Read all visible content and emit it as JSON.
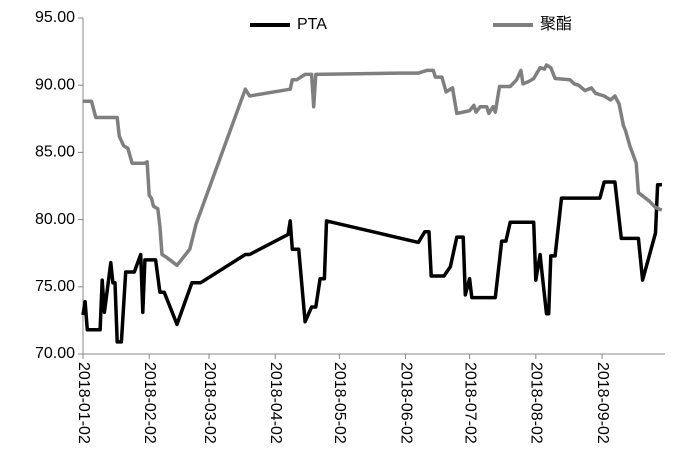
{
  "chart_data": {
    "type": "line",
    "xlim": [
      "2018-01-02",
      "2018-10-01"
    ],
    "xticks": [
      "2018-01-02",
      "2018-02-02",
      "2018-03-02",
      "2018-04-02",
      "2018-05-02",
      "2018-06-02",
      "2018-07-02",
      "2018-08-02",
      "2018-09-02"
    ],
    "ylim": [
      70,
      95
    ],
    "yticks": [
      {
        "value": 70,
        "label": "70.00"
      },
      {
        "value": 75,
        "label": "75.00"
      },
      {
        "value": 80,
        "label": "80.00"
      },
      {
        "value": 85,
        "label": "85.00"
      },
      {
        "value": 90,
        "label": "90.00"
      },
      {
        "value": 95,
        "label": "95.00"
      }
    ],
    "legend": "top",
    "series": [
      {
        "name": "PTA",
        "color": "#000000",
        "x": [
          "2018-01-02",
          "2018-01-03",
          "2018-01-04",
          "2018-01-10",
          "2018-01-11",
          "2018-01-12",
          "2018-01-15",
          "2018-01-16",
          "2018-01-17",
          "2018-01-18",
          "2018-01-20",
          "2018-01-22",
          "2018-01-26",
          "2018-01-29",
          "2018-01-30",
          "2018-01-31",
          "2018-02-05",
          "2018-02-07",
          "2018-02-09",
          "2018-02-15",
          "2018-02-22",
          "2018-02-26",
          "2018-03-19",
          "2018-03-21",
          "2018-04-08",
          "2018-04-09",
          "2018-04-10",
          "2018-04-13",
          "2018-04-16",
          "2018-04-19",
          "2018-04-21",
          "2018-04-23",
          "2018-04-25",
          "2018-04-26",
          "2018-06-08",
          "2018-06-11",
          "2018-06-13",
          "2018-06-14",
          "2018-06-20",
          "2018-06-23",
          "2018-06-26",
          "2018-06-29",
          "2018-06-30",
          "2018-07-02",
          "2018-07-03",
          "2018-07-14",
          "2018-07-17",
          "2018-07-19",
          "2018-07-21",
          "2018-08-01",
          "2018-08-02",
          "2018-08-04",
          "2018-08-05",
          "2018-08-07",
          "2018-08-08",
          "2018-08-09",
          "2018-08-11",
          "2018-08-14",
          "2018-09-01",
          "2018-09-03",
          "2018-09-08",
          "2018-09-11",
          "2018-09-19",
          "2018-09-21",
          "2018-09-27",
          "2018-09-28",
          "2018-09-30"
        ],
        "values": [
          72.9,
          73.9,
          71.8,
          71.8,
          75.5,
          73.1,
          76.8,
          75.3,
          75.3,
          70.9,
          70.9,
          76.1,
          76.1,
          77.4,
          73.1,
          77.0,
          77.0,
          74.6,
          74.6,
          72.2,
          75.3,
          75.3,
          77.4,
          77.4,
          78.9,
          79.9,
          77.8,
          77.8,
          72.4,
          73.5,
          73.5,
          75.6,
          75.6,
          79.9,
          78.3,
          79.1,
          79.1,
          75.8,
          75.8,
          76.5,
          78.7,
          78.7,
          74.4,
          75.6,
          74.2,
          74.2,
          78.4,
          78.4,
          79.8,
          79.8,
          75.5,
          77.4,
          75.9,
          73.0,
          73.0,
          77.3,
          77.3,
          81.6,
          81.6,
          82.8,
          82.8,
          78.6,
          78.6,
          75.5,
          79.0,
          82.6,
          82.6
        ]
      },
      {
        "name": "聚酯",
        "color": "#7f7f7f",
        "x": [
          "2018-01-02",
          "2018-01-06",
          "2018-01-08",
          "2018-01-18",
          "2018-01-19",
          "2018-01-21",
          "2018-01-23",
          "2018-01-25",
          "2018-01-31",
          "2018-02-01",
          "2018-02-02",
          "2018-02-03",
          "2018-02-04",
          "2018-02-06",
          "2018-02-07",
          "2018-02-08",
          "2018-02-10",
          "2018-02-15",
          "2018-02-21",
          "2018-02-24",
          "2018-03-19",
          "2018-03-21",
          "2018-04-09",
          "2018-04-10",
          "2018-04-12",
          "2018-04-16",
          "2018-04-19",
          "2018-04-20",
          "2018-04-21",
          "2018-05-30",
          "2018-06-08",
          "2018-06-12",
          "2018-06-15",
          "2018-06-16",
          "2018-06-19",
          "2018-06-21",
          "2018-06-24",
          "2018-06-26",
          "2018-06-29",
          "2018-07-02",
          "2018-07-04",
          "2018-07-05",
          "2018-07-07",
          "2018-07-10",
          "2018-07-11",
          "2018-07-13",
          "2018-07-14",
          "2018-07-16",
          "2018-07-21",
          "2018-07-24",
          "2018-07-26",
          "2018-07-27",
          "2018-07-30",
          "2018-08-01",
          "2018-08-04",
          "2018-08-06",
          "2018-08-07",
          "2018-08-09",
          "2018-08-11",
          "2018-08-18",
          "2018-08-20",
          "2018-08-22",
          "2018-08-25",
          "2018-08-28",
          "2018-08-30",
          "2018-09-03",
          "2018-09-06",
          "2018-09-08",
          "2018-09-10",
          "2018-09-12",
          "2018-09-13",
          "2018-09-15",
          "2018-09-18",
          "2018-09-19",
          "2018-09-24",
          "2018-09-27",
          "2018-09-30"
        ],
        "values": [
          88.8,
          88.8,
          87.6,
          87.6,
          86.2,
          85.5,
          85.3,
          84.2,
          84.2,
          84.3,
          81.8,
          81.6,
          81.0,
          80.8,
          79.5,
          77.4,
          77.2,
          76.6,
          77.8,
          79.7,
          89.7,
          89.2,
          89.7,
          90.4,
          90.4,
          90.8,
          90.8,
          88.4,
          90.8,
          90.9,
          90.9,
          91.1,
          91.1,
          90.6,
          90.6,
          89.5,
          89.8,
          87.9,
          88.0,
          88.1,
          88.5,
          88.0,
          88.4,
          88.4,
          87.9,
          88.4,
          88.0,
          89.9,
          89.9,
          90.4,
          91.1,
          90.1,
          90.3,
          90.5,
          91.3,
          91.2,
          91.5,
          91.3,
          90.5,
          90.4,
          90.1,
          90.0,
          89.6,
          89.8,
          89.4,
          89.2,
          88.9,
          89.2,
          88.6,
          87.0,
          86.6,
          85.5,
          84.2,
          82.0,
          81.4,
          80.9,
          80.7
        ]
      }
    ]
  }
}
